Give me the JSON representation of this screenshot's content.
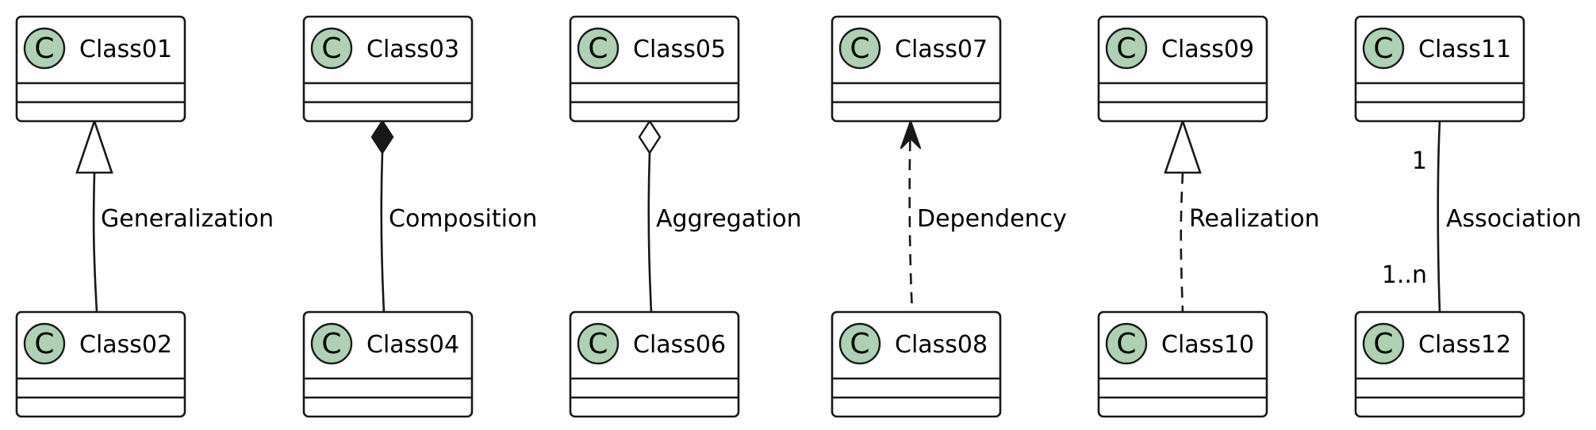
{
  "colors": {
    "class_fill": "#ffffff",
    "stroke": "#181818",
    "circle_fill": "#add1b2",
    "text": "#000000"
  },
  "circle_glyph": "C",
  "pairs": [
    {
      "top": "Class01",
      "bottom": "Class02",
      "label": "Generalization",
      "kind": "generalization",
      "top_multiplicity": "",
      "bottom_multiplicity": ""
    },
    {
      "top": "Class03",
      "bottom": "Class04",
      "label": "Composition",
      "kind": "composition",
      "top_multiplicity": "",
      "bottom_multiplicity": ""
    },
    {
      "top": "Class05",
      "bottom": "Class06",
      "label": "Aggregation",
      "kind": "aggregation",
      "top_multiplicity": "",
      "bottom_multiplicity": ""
    },
    {
      "top": "Class07",
      "bottom": "Class08",
      "label": "Dependency",
      "kind": "dependency",
      "top_multiplicity": "",
      "bottom_multiplicity": ""
    },
    {
      "top": "Class09",
      "bottom": "Class10",
      "label": "Realization",
      "kind": "realization",
      "top_multiplicity": "",
      "bottom_multiplicity": ""
    },
    {
      "top": "Class11",
      "bottom": "Class12",
      "label": "Association",
      "kind": "association",
      "top_multiplicity": "1",
      "bottom_multiplicity": "1..n"
    }
  ]
}
